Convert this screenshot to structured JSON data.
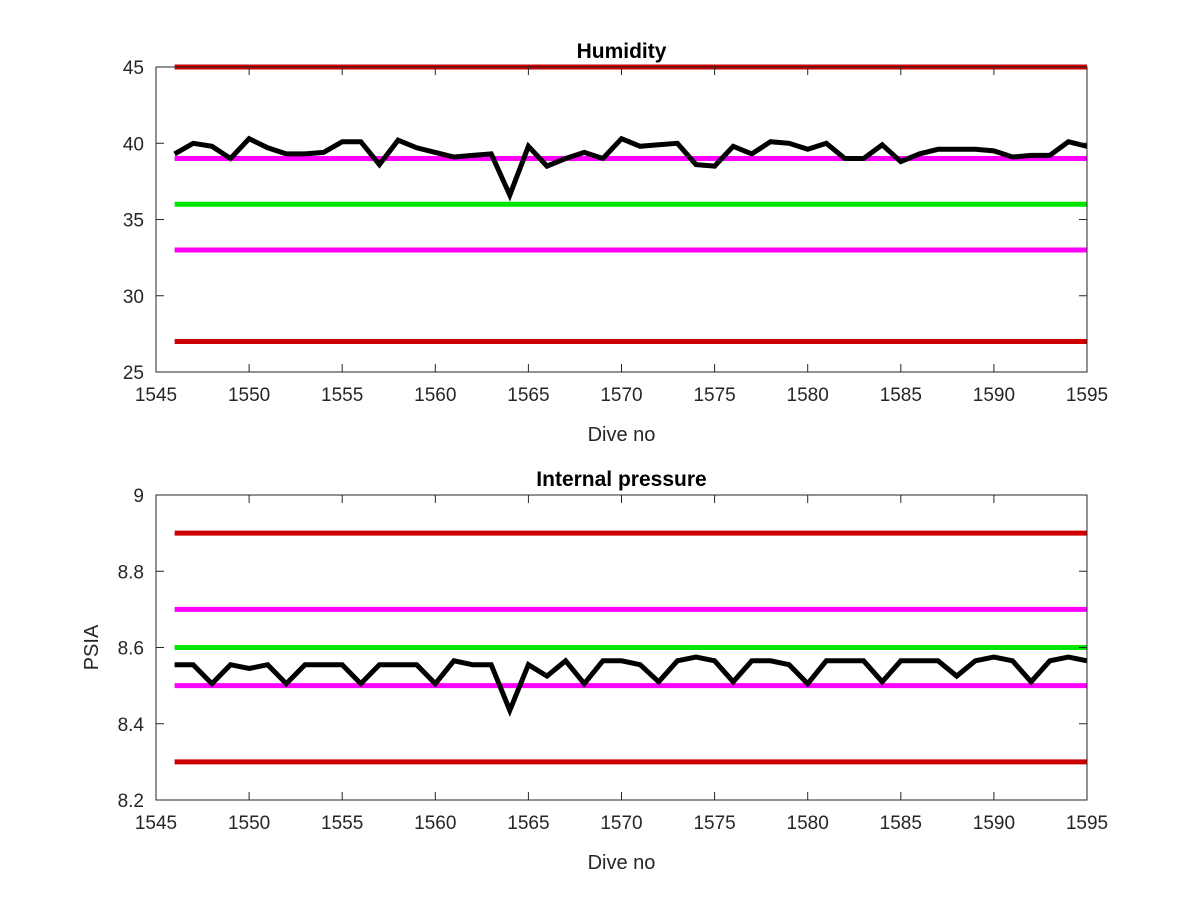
{
  "chart_data": [
    {
      "type": "line",
      "title": "Humidity",
      "xlabel": "Dive no",
      "ylabel": "",
      "xlim": [
        1545,
        1595
      ],
      "ylim": [
        25,
        45
      ],
      "xticks": [
        1545,
        1550,
        1555,
        1560,
        1565,
        1570,
        1575,
        1580,
        1585,
        1590,
        1595
      ],
      "yticks": [
        25,
        30,
        35,
        40,
        45
      ],
      "grid": false,
      "thresholds": [
        {
          "value": 45,
          "color": "#cc0000"
        },
        {
          "value": 39,
          "color": "#ff00ff"
        },
        {
          "value": 36,
          "color": "#00e600"
        },
        {
          "value": 33,
          "color": "#ff00ff"
        },
        {
          "value": 27,
          "color": "#cc0000"
        }
      ],
      "series": [
        {
          "color": "#000000",
          "x": [
            1546,
            1547,
            1548,
            1549,
            1550,
            1551,
            1552,
            1553,
            1554,
            1555,
            1556,
            1557,
            1558,
            1559,
            1560,
            1561,
            1562,
            1563,
            1564,
            1565,
            1566,
            1567,
            1568,
            1569,
            1570,
            1571,
            1572,
            1573,
            1574,
            1575,
            1576,
            1577,
            1578,
            1579,
            1580,
            1581,
            1582,
            1583,
            1584,
            1585,
            1586,
            1587,
            1588,
            1589,
            1590,
            1591,
            1592,
            1593,
            1594,
            1595
          ],
          "values": [
            39.3,
            40.0,
            39.8,
            39.0,
            40.3,
            39.7,
            39.3,
            39.3,
            39.4,
            40.1,
            40.1,
            38.6,
            40.2,
            39.7,
            39.4,
            39.1,
            39.2,
            39.3,
            36.6,
            39.8,
            38.5,
            39.0,
            39.4,
            39.0,
            40.3,
            39.8,
            39.9,
            40.0,
            38.6,
            38.5,
            39.8,
            39.3,
            40.1,
            40.0,
            39.6,
            40.0,
            39.0,
            39.0,
            39.9,
            38.8,
            39.3,
            39.6,
            39.6,
            39.6,
            39.5,
            39.1,
            39.2,
            39.2,
            40.1,
            39.8
          ]
        }
      ]
    },
    {
      "type": "line",
      "title": "Internal pressure",
      "xlabel": "Dive no",
      "ylabel": "PSIA",
      "xlim": [
        1545,
        1595
      ],
      "ylim": [
        8.2,
        9.0
      ],
      "xticks": [
        1545,
        1550,
        1555,
        1560,
        1565,
        1570,
        1575,
        1580,
        1585,
        1590,
        1595
      ],
      "yticks": [
        8.2,
        8.4,
        8.6,
        8.8,
        9.0
      ],
      "ytick_labels": [
        "8.2",
        "8.4",
        "8.6",
        "8.8",
        "9"
      ],
      "grid": false,
      "thresholds": [
        {
          "value": 8.9,
          "color": "#cc0000"
        },
        {
          "value": 8.7,
          "color": "#ff00ff"
        },
        {
          "value": 8.6,
          "color": "#00e600"
        },
        {
          "value": 8.5,
          "color": "#ff00ff"
        },
        {
          "value": 8.3,
          "color": "#cc0000"
        }
      ],
      "series": [
        {
          "color": "#000000",
          "x": [
            1546,
            1547,
            1548,
            1549,
            1550,
            1551,
            1552,
            1553,
            1554,
            1555,
            1556,
            1557,
            1558,
            1559,
            1560,
            1561,
            1562,
            1563,
            1564,
            1565,
            1566,
            1567,
            1568,
            1569,
            1570,
            1571,
            1572,
            1573,
            1574,
            1575,
            1576,
            1577,
            1578,
            1579,
            1580,
            1581,
            1582,
            1583,
            1584,
            1585,
            1586,
            1587,
            1588,
            1589,
            1590,
            1591,
            1592,
            1593,
            1594,
            1595
          ],
          "values": [
            8.555,
            8.555,
            8.505,
            8.555,
            8.545,
            8.555,
            8.505,
            8.555,
            8.555,
            8.555,
            8.505,
            8.555,
            8.555,
            8.555,
            8.505,
            8.565,
            8.555,
            8.555,
            8.435,
            8.555,
            8.525,
            8.565,
            8.505,
            8.565,
            8.565,
            8.555,
            8.51,
            8.565,
            8.575,
            8.565,
            8.51,
            8.565,
            8.565,
            8.555,
            8.505,
            8.565,
            8.565,
            8.565,
            8.51,
            8.565,
            8.565,
            8.565,
            8.525,
            8.565,
            8.575,
            8.565,
            8.51,
            8.565,
            8.575,
            8.565
          ]
        }
      ]
    }
  ]
}
